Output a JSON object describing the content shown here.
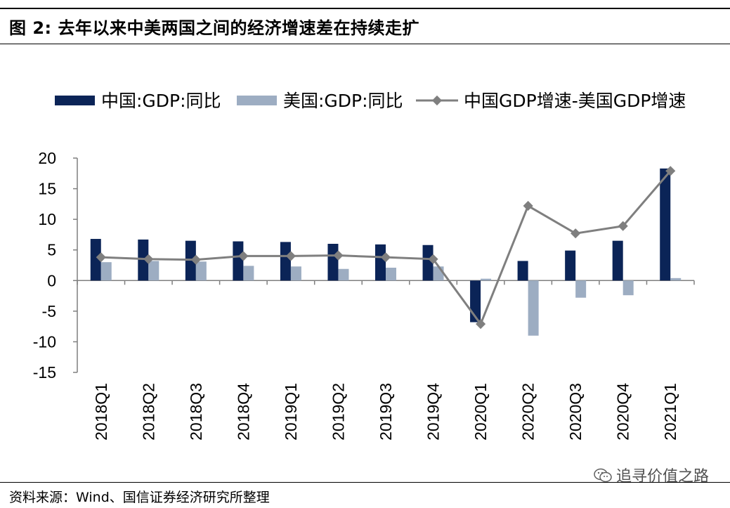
{
  "figure": {
    "title": "图 2:  去年以来中美两国之间的经济增速差在持续走扩",
    "source": "资料来源：Wind、国信证券经济研究所整理",
    "watermark": "追寻价值之路"
  },
  "chart_data": {
    "type": "bar",
    "title": "",
    "xlabel": "",
    "ylabel": "",
    "ylim": [
      -15,
      20
    ],
    "yticks": [
      20,
      15,
      10,
      5,
      0,
      -5,
      -10,
      -15
    ],
    "grid": false,
    "legend_position": "top",
    "categories": [
      "2018Q1",
      "2018Q2",
      "2018Q3",
      "2018Q4",
      "2019Q1",
      "2019Q2",
      "2019Q3",
      "2019Q4",
      "2020Q1",
      "2020Q2",
      "2020Q3",
      "2020Q4",
      "2021Q1"
    ],
    "series": [
      {
        "name": "中国:GDP:同比",
        "type": "bar",
        "color": "#0b2457",
        "values": [
          6.8,
          6.7,
          6.5,
          6.4,
          6.3,
          6.0,
          5.9,
          5.8,
          -6.8,
          3.2,
          4.9,
          6.5,
          18.3
        ]
      },
      {
        "name": "美国:GDP:同比",
        "type": "bar",
        "color": "#9dadc2",
        "values": [
          3.0,
          3.2,
          3.1,
          2.4,
          2.3,
          1.9,
          2.1,
          2.3,
          0.3,
          -9.0,
          -2.8,
          -2.4,
          0.4
        ]
      },
      {
        "name": "中国GDP增速-美国GDP增速",
        "type": "line",
        "color": "#7f7f7f",
        "values": [
          3.8,
          3.5,
          3.4,
          4.0,
          4.0,
          4.1,
          3.8,
          3.5,
          -7.1,
          12.2,
          7.7,
          8.9,
          17.9
        ]
      }
    ]
  }
}
